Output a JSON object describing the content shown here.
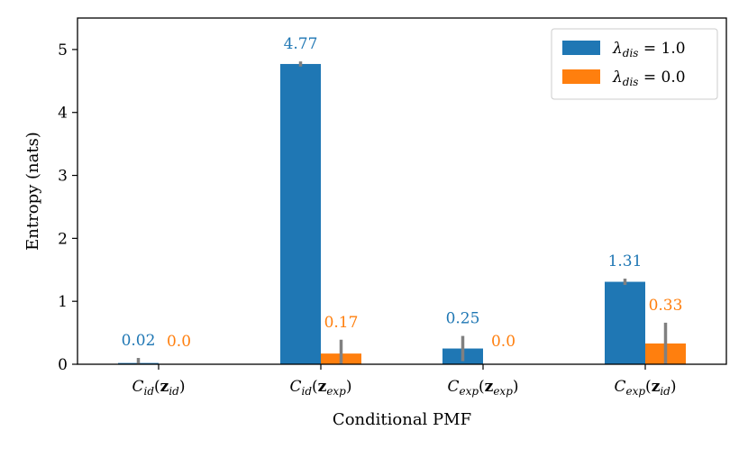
{
  "chart_data": {
    "type": "bar",
    "title": "",
    "xlabel": "Conditional PMF",
    "ylabel": "Entropy (nats)",
    "ylim": [
      0,
      5.5
    ],
    "yticks": [
      0,
      1,
      2,
      3,
      4,
      5
    ],
    "grid": false,
    "legend_position": "top-right",
    "categories": [
      {
        "base": "C",
        "sub": "id",
        "arg": "z",
        "argsub": "id"
      },
      {
        "base": "C",
        "sub": "id",
        "arg": "z",
        "argsub": "exp"
      },
      {
        "base": "C",
        "sub": "exp",
        "arg": "z",
        "argsub": "exp"
      },
      {
        "base": "C",
        "sub": "exp",
        "arg": "z",
        "argsub": "id"
      }
    ],
    "series": [
      {
        "name": "λ_dis = 1.0",
        "legend_symbol": "λ",
        "legend_sub": "dis",
        "legend_value": "= 1.0",
        "color": "#1f77b4",
        "values": [
          0.02,
          4.77,
          0.25,
          1.31
        ],
        "labels": [
          "0.02",
          "4.77",
          "0.25",
          "1.31"
        ],
        "errors": [
          0.08,
          0.04,
          0.2,
          0.05
        ]
      },
      {
        "name": "λ_dis = 0.0",
        "legend_symbol": "λ",
        "legend_sub": "dis",
        "legend_value": "= 0.0",
        "color": "#ff7f0e",
        "values": [
          0.0,
          0.17,
          0.0,
          0.33
        ],
        "labels": [
          "0.0",
          "0.17",
          "0.0",
          "0.33"
        ],
        "errors": [
          0.0,
          0.22,
          0.0,
          0.33
        ]
      }
    ],
    "error_color": "#808080"
  }
}
